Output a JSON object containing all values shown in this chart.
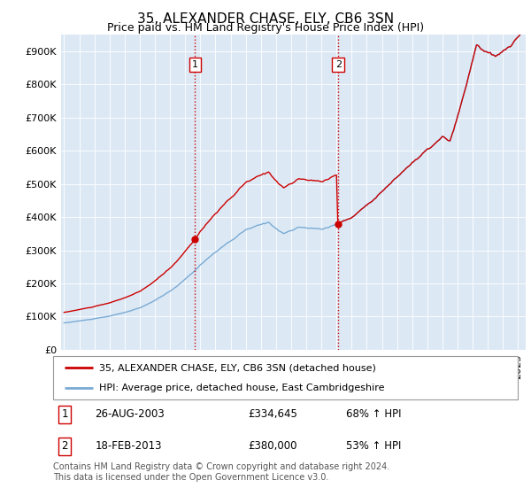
{
  "title": "35, ALEXANDER CHASE, ELY, CB6 3SN",
  "subtitle": "Price paid vs. HM Land Registry's House Price Index (HPI)",
  "ylim": [
    0,
    950000
  ],
  "yticks": [
    0,
    100000,
    200000,
    300000,
    400000,
    500000,
    600000,
    700000,
    800000,
    900000
  ],
  "ytick_labels": [
    "£0",
    "£100K",
    "£200K",
    "£300K",
    "£400K",
    "£500K",
    "£600K",
    "£700K",
    "£800K",
    "£900K"
  ],
  "xlim_start": 1994.8,
  "xlim_end": 2025.5,
  "hpi_color": "#7aaad4",
  "price_color": "#cc0000",
  "marker1_x": 2003.65,
  "marker1_y": 334645,
  "marker2_x": 2013.12,
  "marker2_y": 380000,
  "vline_color": "#cc0000",
  "background_color": "#dce9f5",
  "legend_label_red": "35, ALEXANDER CHASE, ELY, CB6 3SN (detached house)",
  "legend_label_blue": "HPI: Average price, detached house, East Cambridgeshire",
  "table_row1": [
    "1",
    "26-AUG-2003",
    "£334,645",
    "68% ↑ HPI"
  ],
  "table_row2": [
    "2",
    "18-FEB-2013",
    "£380,000",
    "53% ↑ HPI"
  ],
  "footer": "Contains HM Land Registry data © Crown copyright and database right 2024.\nThis data is licensed under the Open Government Licence v3.0.",
  "title_fontsize": 11,
  "subtitle_fontsize": 9,
  "tick_fontsize": 8,
  "legend_fontsize": 8,
  "table_fontsize": 8.5,
  "footer_fontsize": 7
}
